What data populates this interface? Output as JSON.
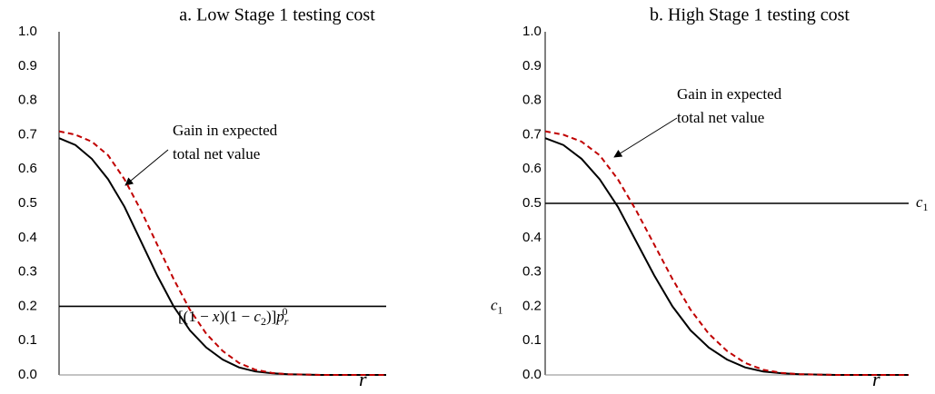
{
  "chart_data": [
    {
      "type": "line",
      "title": "a.   Low Stage 1 testing cost",
      "xlabel": "r",
      "categories": [
        null,
        null,
        null,
        null,
        null,
        null,
        null,
        null,
        null,
        null,
        null,
        null,
        null,
        null,
        null,
        null,
        null,
        null,
        null,
        null,
        null
      ],
      "series": [
        {
          "color": "#000000",
          "dash": false,
          "values": [
            0.69,
            0.67,
            0.63,
            0.57,
            0.49,
            0.39,
            0.29,
            0.2,
            0.13,
            0.08,
            0.045,
            0.022,
            0.01,
            0.005,
            0.002,
            0.001,
            0,
            0,
            0,
            0,
            0
          ]
        },
        {
          "color": "#c00000",
          "dash": true,
          "values": [
            0.71,
            0.7,
            0.68,
            0.64,
            0.57,
            0.48,
            0.38,
            0.28,
            0.19,
            0.12,
            0.07,
            0.035,
            0.015,
            0.006,
            0.002,
            0.001,
            0,
            0,
            0,
            0,
            0
          ]
        }
      ],
      "hline": {
        "value": 0.2,
        "label": [
          "c",
          "1"
        ]
      },
      "annotation": [
        "Gain in expected",
        "total net value"
      ],
      "formula": [
        "[(1 − ",
        "x",
        ")(1 − ",
        "c",
        "2",
        ")]",
        "p",
        "r",
        "0"
      ],
      "ylim": [
        0,
        1
      ],
      "yticks": [
        {
          "value": 0,
          "label": "0.0"
        },
        0.1,
        0.2,
        0.3,
        0.4,
        0.5,
        0.6,
        0.7,
        0.8,
        0.9,
        {
          "value": 1,
          "label": "1.0"
        }
      ]
    },
    {
      "type": "line",
      "title": "b.   High Stage 1 testing cost",
      "xlabel": "r",
      "categories": [
        null,
        null,
        null,
        null,
        null,
        null,
        null,
        null,
        null,
        null,
        null,
        null,
        null,
        null,
        null,
        null,
        null,
        null,
        null,
        null,
        null
      ],
      "series": [
        {
          "color": "#000000",
          "dash": false,
          "values": [
            0.69,
            0.67,
            0.63,
            0.57,
            0.49,
            0.39,
            0.29,
            0.2,
            0.13,
            0.08,
            0.045,
            0.022,
            0.01,
            0.005,
            0.002,
            0.001,
            0,
            0,
            0,
            0,
            0
          ]
        },
        {
          "color": "#c00000",
          "dash": true,
          "values": [
            0.71,
            0.7,
            0.68,
            0.64,
            0.57,
            0.48,
            0.38,
            0.28,
            0.19,
            0.12,
            0.07,
            0.035,
            0.015,
            0.006,
            0.002,
            0.001,
            0,
            0,
            0,
            0,
            0
          ]
        }
      ],
      "hline": {
        "value": 0.5,
        "label": [
          "c",
          "1"
        ]
      },
      "annotation": [
        "Gain in expected",
        "total net value"
      ],
      "ylim": [
        0,
        1
      ],
      "yticks": [
        {
          "value": 0,
          "label": "0.0"
        },
        0.1,
        0.2,
        0.3,
        0.4,
        0.5,
        0.6,
        0.7,
        0.8,
        0.9,
        {
          "value": 1,
          "label": "1.0"
        }
      ]
    }
  ]
}
